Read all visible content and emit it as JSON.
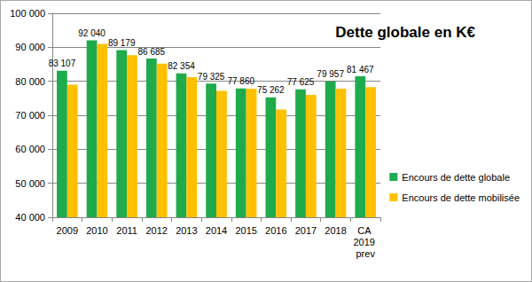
{
  "chart_data": {
    "type": "bar",
    "title": "Dette globale en K€",
    "categories": [
      "2009",
      "2010",
      "2011",
      "2012",
      "2013",
      "2014",
      "2015",
      "2016",
      "2017",
      "2018",
      "CA 2019 prev"
    ],
    "series": [
      {
        "name": "Encours de dette globale",
        "color": "#1fab4c",
        "data_labels": true,
        "values": [
          83107,
          92040,
          89179,
          86685,
          82354,
          79325,
          77860,
          75262,
          77625,
          79957,
          81467
        ],
        "value_labels": [
          "83 107",
          "92 040",
          "89 179",
          "86 685",
          "82 354",
          "79 325",
          "77 860",
          "75 262",
          "77 625",
          "79 957",
          "81 467"
        ]
      },
      {
        "name": "Encours de dette mobilisée",
        "color": "#ffc000",
        "values": [
          79000,
          91000,
          87700,
          85200,
          81200,
          77200,
          77800,
          71700,
          76000,
          77800,
          78300
        ]
      }
    ],
    "ylim": [
      40000,
      100000
    ],
    "yticks": [
      {
        "value": 40000,
        "label": "40 000"
      },
      {
        "value": 50000,
        "label": "50 000"
      },
      {
        "value": 60000,
        "label": "60 000"
      },
      {
        "value": 70000,
        "label": "70 000"
      },
      {
        "value": 80000,
        "label": "80 000"
      },
      {
        "value": 90000,
        "label": "90 000"
      },
      {
        "value": 100000,
        "label": "100 000"
      }
    ],
    "grid": true,
    "legend": "right"
  }
}
